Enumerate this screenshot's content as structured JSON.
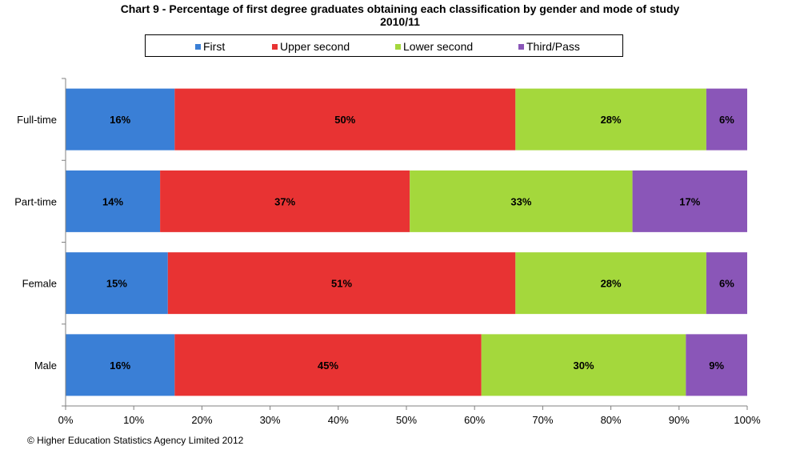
{
  "chart_data": {
    "type": "bar",
    "orientation": "horizontal",
    "stacked": true,
    "percent": true,
    "title": "Chart 9 - Percentage of first  degree graduates obtaining each classification  by gender and mode of study",
    "subtitle": "2010/11",
    "categories": [
      "Full-time",
      "Part-time",
      "Female",
      "Male"
    ],
    "series": [
      {
        "name": "First",
        "color": "#3a7fd6",
        "values": [
          16,
          14,
          15,
          16
        ],
        "labels": [
          "16%",
          "14%",
          "15%",
          "16%"
        ]
      },
      {
        "name": "Upper second",
        "color": "#e83333",
        "values": [
          50,
          37,
          51,
          45
        ],
        "labels": [
          "50%",
          "37%",
          "51%",
          "45%"
        ]
      },
      {
        "name": "Lower second",
        "color": "#a4d83c",
        "values": [
          28,
          33,
          28,
          30
        ],
        "labels": [
          "28%",
          "33%",
          "28%",
          "30%"
        ]
      },
      {
        "name": "Third/Pass",
        "color": "#8a56b8",
        "values": [
          6,
          17,
          6,
          9
        ],
        "labels": [
          "6%",
          "17%",
          "6%",
          "9%"
        ]
      }
    ],
    "xlim": [
      0,
      100
    ],
    "x_ticks": [
      "0%",
      "10%",
      "20%",
      "30%",
      "40%",
      "50%",
      "60%",
      "70%",
      "80%",
      "90%",
      "100%"
    ],
    "grid": false,
    "legend_position": "top"
  },
  "footer": "© Higher Education  Statistics Agency Limited 2012"
}
